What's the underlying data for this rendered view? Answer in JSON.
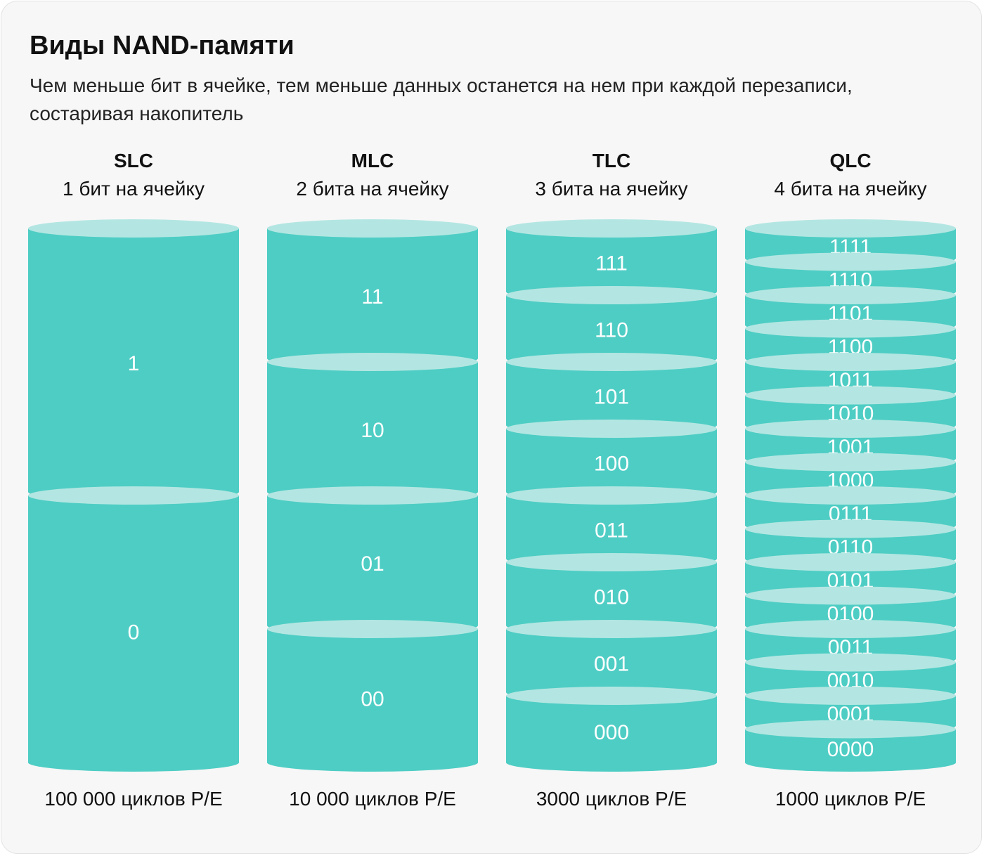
{
  "title": "Виды NAND-памяти",
  "subtitle": "Чем меньше бит в ячейке, тем меньше данных останется на нем при каждой перезаписи, состаривая накопитель",
  "colors": {
    "segment_body": "#4ecdc4",
    "segment_top": "#b3e6e2",
    "card_background": "#f7f7f7",
    "text": "#111111",
    "segment_text": "#ffffff"
  },
  "columns": [
    {
      "name": "SLC",
      "description": "1 бит на ячейку",
      "cycles": "100 000 циклов P/E",
      "states": [
        "1",
        "0"
      ]
    },
    {
      "name": "MLC",
      "description": "2 бита на ячейку",
      "cycles": "10 000 циклов P/E",
      "states": [
        "11",
        "10",
        "01",
        "00"
      ]
    },
    {
      "name": "TLC",
      "description": "3 бита на ячейку",
      "cycles": "3000 циклов P/E",
      "states": [
        "111",
        "110",
        "101",
        "100",
        "011",
        "010",
        "001",
        "000"
      ]
    },
    {
      "name": "QLC",
      "description": "4 бита на ячейку",
      "cycles": "1000 циклов P/E",
      "states": [
        "1111",
        "1110",
        "1101",
        "1100",
        "1011",
        "1010",
        "1001",
        "1000",
        "0111",
        "0110",
        "0101",
        "0100",
        "0011",
        "0010",
        "0001",
        "0000"
      ]
    }
  ]
}
